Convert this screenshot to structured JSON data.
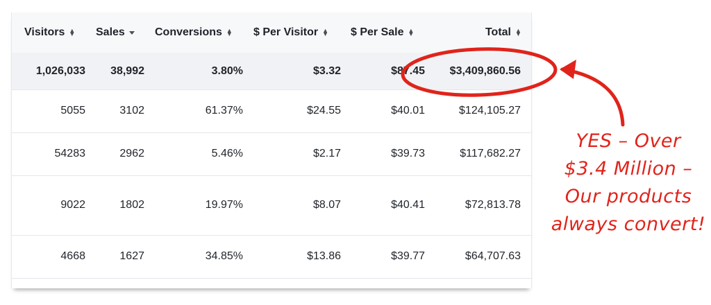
{
  "table": {
    "headers": [
      {
        "label": "Visitors",
        "sort": "both"
      },
      {
        "label": "Sales",
        "sort": "desc"
      },
      {
        "label": "Conversions",
        "sort": "both"
      },
      {
        "label": "$ Per Visitor",
        "sort": "both"
      },
      {
        "label": "$ Per Sale",
        "sort": "both"
      },
      {
        "label": "Total",
        "sort": "both"
      }
    ],
    "totals": {
      "visitors": "1,026,033",
      "sales": "38,992",
      "conversions": "3.80%",
      "per_visitor": "$3.32",
      "per_sale": "$87.45",
      "total": "$3,409,860.56"
    },
    "rows": [
      {
        "visitors": "5055",
        "sales": "3102",
        "conversions": "61.37%",
        "per_visitor": "$24.55",
        "per_sale": "$40.01",
        "total": "$124,105.27"
      },
      {
        "visitors": "54283",
        "sales": "2962",
        "conversions": "5.46%",
        "per_visitor": "$2.17",
        "per_sale": "$39.73",
        "total": "$117,682.27"
      },
      {
        "visitors": "9022",
        "sales": "1802",
        "conversions": "19.97%",
        "per_visitor": "$8.07",
        "per_sale": "$40.41",
        "total": "$72,813.78"
      },
      {
        "visitors": "4668",
        "sales": "1627",
        "conversions": "34.85%",
        "per_visitor": "$13.86",
        "per_sale": "$39.77",
        "total": "$64,707.63"
      }
    ]
  },
  "annotation": {
    "lines": [
      "YES – Over",
      "$3.4 Million –",
      "Our products",
      "always convert!"
    ],
    "color": "#e0241b"
  },
  "icons": {
    "sort_both": "sort-updown-icon",
    "sort_desc": "caret-down-icon"
  }
}
